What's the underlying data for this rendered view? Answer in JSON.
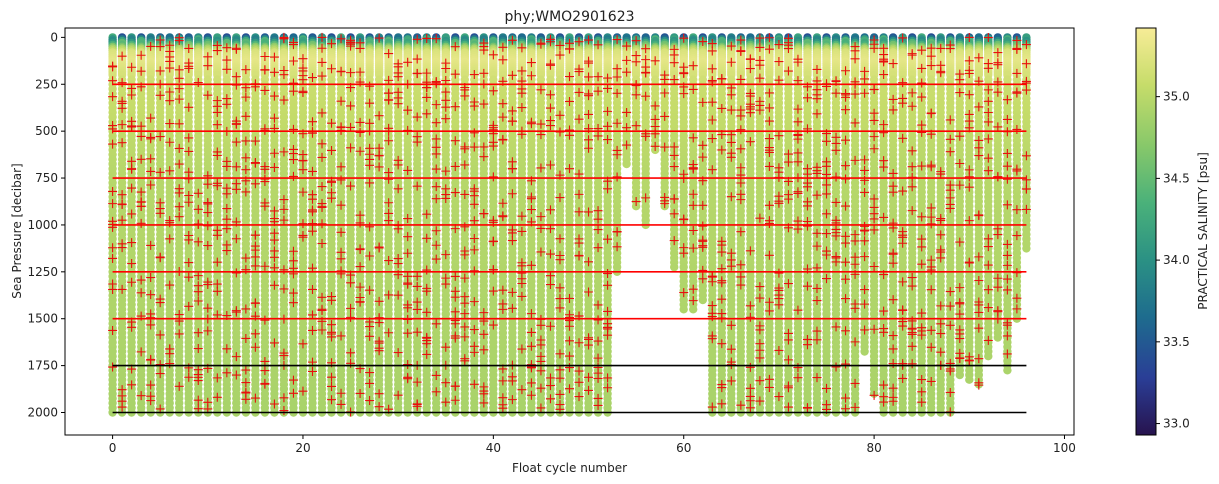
{
  "chart_data": {
    "type": "scatter",
    "title": "phy;WMO2901623",
    "xlabel": "Float cycle number",
    "ylabel": "Sea Pressure [decibar]",
    "xlim": [
      -5,
      101
    ],
    "ylim": [
      2120,
      -50
    ],
    "y_inverted": true,
    "grid": false,
    "x_ticks": [
      0,
      20,
      40,
      60,
      80,
      100
    ],
    "y_ticks": [
      0,
      250,
      500,
      750,
      1000,
      1250,
      1500,
      1750,
      2000
    ],
    "colorbar": {
      "label": "PRACTICAL SALINITY [psu]",
      "range": [
        32.93,
        35.42
      ],
      "ticks": [
        33.0,
        33.5,
        34.0,
        34.5,
        35.0
      ],
      "tick_labels": [
        "33.0",
        "33.5",
        "34.0",
        "34.5",
        "35.0"
      ],
      "colormap": "haline",
      "colors": [
        "#27134e",
        "#2a3e96",
        "#1e6c8e",
        "#2b9184",
        "#4ab17a",
        "#87c86a",
        "#c6dc6a",
        "#f7ec97"
      ]
    },
    "profile_cycles": [
      0,
      96
    ],
    "profile_max_pressure": [
      {
        "cycle_range": [
          0,
          52
        ],
        "max_pressure": 2000
      },
      {
        "cycle": 53,
        "max_pressure": 1250
      },
      {
        "cycle": 54,
        "max_pressure": 680
      },
      {
        "cycle": 55,
        "max_pressure": 900
      },
      {
        "cycle": 56,
        "max_pressure": 1000
      },
      {
        "cycle": 57,
        "max_pressure": 620
      },
      {
        "cycle": 58,
        "max_pressure": 900
      },
      {
        "cycle": 59,
        "max_pressure": 1230
      },
      {
        "cycle": 60,
        "max_pressure": 1460
      },
      {
        "cycle": 61,
        "max_pressure": 1450
      },
      {
        "cycle": 62,
        "max_pressure": 1400
      },
      {
        "cycle_range": [
          63,
          78
        ],
        "max_pressure": 2000
      },
      {
        "cycle": 79,
        "max_pressure": 1690
      },
      {
        "cycle": 80,
        "max_pressure": 1920
      },
      {
        "cycle_range": [
          81,
          88
        ],
        "max_pressure": 2000
      },
      {
        "cycle": 89,
        "max_pressure": 1820
      },
      {
        "cycle": 90,
        "max_pressure": 1840
      },
      {
        "cycle": 91,
        "max_pressure": 1870
      },
      {
        "cycle": 92,
        "max_pressure": 1720
      },
      {
        "cycle": 93,
        "max_pressure": 1620
      },
      {
        "cycle": 94,
        "max_pressure": 1780
      },
      {
        "cycle": 95,
        "max_pressure": 1510
      },
      {
        "cycle": 96,
        "max_pressure": 1140
      }
    ],
    "salinity_profile": [
      {
        "pressure": 0,
        "salinity": 34.3
      },
      {
        "pressure": 40,
        "salinity": 34.6
      },
      {
        "pressure": 80,
        "salinity": 35.2
      },
      {
        "pressure": 130,
        "salinity": 35.3
      },
      {
        "pressure": 250,
        "salinity": 35.1
      },
      {
        "pressure": 700,
        "salinity": 34.98
      },
      {
        "pressure": 2000,
        "salinity": 34.9
      }
    ],
    "reference_lines": [
      {
        "pressure": 250,
        "color": "red",
        "x_range": [
          0,
          96
        ]
      },
      {
        "pressure": 500,
        "color": "red",
        "x_range": [
          0,
          96
        ]
      },
      {
        "pressure": 750,
        "color": "red",
        "x_range": [
          0,
          96
        ]
      },
      {
        "pressure": 1000,
        "color": "red",
        "x_range": [
          0,
          96
        ]
      },
      {
        "pressure": 1250,
        "color": "red",
        "x_range": [
          0,
          96
        ]
      },
      {
        "pressure": 1500,
        "color": "red",
        "x_range": [
          0,
          96
        ]
      },
      {
        "pressure": 1750,
        "color": "black",
        "x_range": [
          0,
          96
        ]
      },
      {
        "pressure": 2000,
        "color": "black",
        "x_range": [
          0,
          96
        ]
      }
    ],
    "red_markers": "many red '+' markers scattered at various pressures within every profile (flagged measurements)"
  }
}
